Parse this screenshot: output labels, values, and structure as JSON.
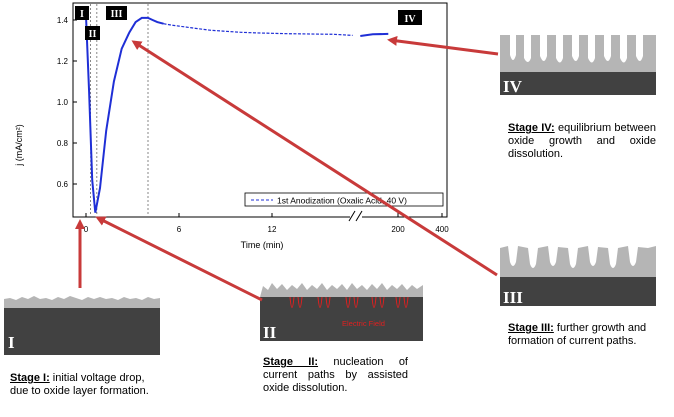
{
  "chart_data": {
    "type": "line",
    "ylabel": "j (mA/cm²)",
    "xlabel": "Time (min)",
    "y_ticks": [
      "0.6",
      "0.8",
      "1.0",
      "1.2",
      "1.4"
    ],
    "x_ticks": [
      "0",
      "6",
      "12",
      "200",
      "400"
    ],
    "ylim": [
      0.45,
      1.45
    ],
    "xlim": [
      0,
      19.5
    ],
    "x_break": true,
    "legend": {
      "label": "1st Anodization  (Oxalic Acid, 40 V)",
      "placement": "bottom-right"
    },
    "series": [
      {
        "style": "solid-then-dashed",
        "x": [
          0,
          0.2,
          0.4,
          0.6,
          0.9,
          1.3,
          1.8,
          2.3,
          2.8,
          3.2,
          3.6,
          4.0,
          4.3,
          4.6,
          5.0,
          5.5,
          6.0,
          7,
          8,
          9,
          10,
          11,
          12,
          13,
          14,
          15,
          16,
          17.2,
          17.7,
          18.5,
          19.5
        ],
        "y": [
          1.42,
          1.05,
          0.62,
          0.46,
          0.58,
          0.86,
          1.1,
          1.26,
          1.34,
          1.39,
          1.41,
          1.41,
          1.4,
          1.39,
          1.382,
          1.375,
          1.37,
          1.36,
          1.35,
          1.345,
          1.34,
          1.337,
          1.335,
          1.333,
          1.332,
          1.331,
          1.33,
          1.325,
          1.322,
          1.33,
          1.332
        ]
      }
    ],
    "stage_markers": [
      {
        "label": "I",
        "x": 0.3
      },
      {
        "label": "II",
        "x": 0.7
      },
      {
        "label": "III",
        "x": 4.0
      },
      {
        "label": "IV",
        "x": 17.2
      }
    ]
  },
  "insets": {
    "electric_field_label": "Electric Field",
    "stage_I": "I",
    "stage_II": "II",
    "stage_III": "III",
    "stage_IV": "IV"
  },
  "captions": {
    "stage_I": {
      "head": "Stage I:",
      "text": " initial voltage drop, due to oxide layer formation."
    },
    "stage_II": {
      "head": "Stage II:",
      "text": " nucleation of current paths by assisted oxide dissolution."
    },
    "stage_III": {
      "head": "Stage III:",
      "text": " further growth and formation of current paths."
    },
    "stage_IV": {
      "head": "Stage IV:",
      "text": " equilibrium between oxide growth and oxide dissolution."
    }
  },
  "colors": {
    "curve": "#1f2fd6",
    "arrow": "#c83a3a",
    "inset_dark": "#414141",
    "inset_light": "#b5b5b5",
    "field_lines": "#e02020"
  }
}
